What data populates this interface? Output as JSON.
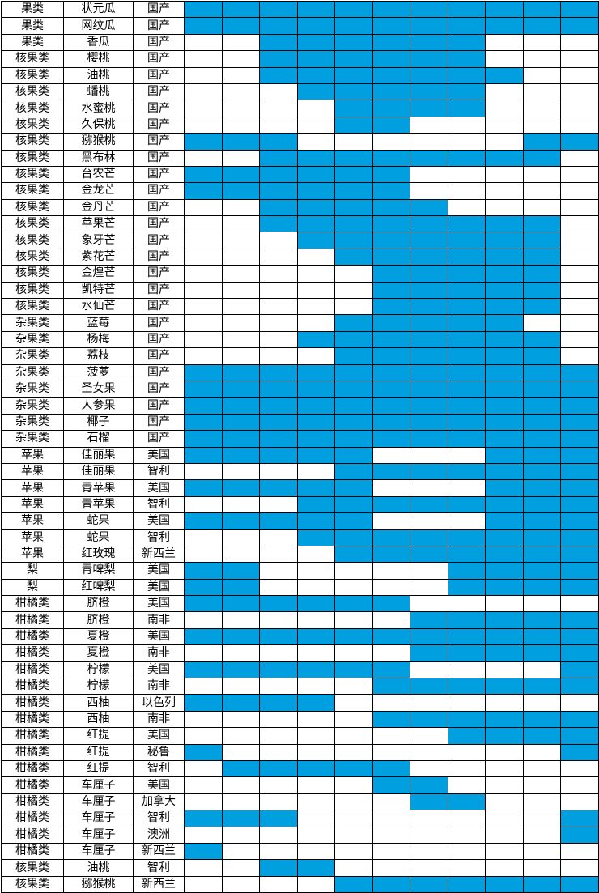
{
  "colors": {
    "filled": "#009fe0",
    "empty": "#ffffff",
    "grid": "#000000"
  },
  "month_columns": 11,
  "rows": [
    {
      "category": "果类",
      "name": "状元瓜",
      "origin": "国产",
      "months": [
        1,
        1,
        1,
        1,
        1,
        1,
        1,
        1,
        1,
        1,
        1
      ]
    },
    {
      "category": "果类",
      "name": "网纹瓜",
      "origin": "国产",
      "months": [
        1,
        1,
        1,
        1,
        1,
        1,
        1,
        1,
        1,
        1,
        1
      ]
    },
    {
      "category": "果类",
      "name": "香瓜",
      "origin": "国产",
      "months": [
        0,
        0,
        1,
        1,
        1,
        1,
        1,
        1,
        0,
        0,
        0
      ]
    },
    {
      "category": "核果类",
      "name": "樱桃",
      "origin": "国产",
      "months": [
        0,
        0,
        1,
        1,
        1,
        1,
        1,
        1,
        0,
        0,
        0
      ]
    },
    {
      "category": "核果类",
      "name": "油桃",
      "origin": "国产",
      "months": [
        0,
        0,
        1,
        1,
        1,
        1,
        1,
        1,
        1,
        0,
        0
      ]
    },
    {
      "category": "核果类",
      "name": "蟠桃",
      "origin": "国产",
      "months": [
        0,
        0,
        0,
        1,
        1,
        1,
        1,
        1,
        0,
        0,
        0
      ]
    },
    {
      "category": "核果类",
      "name": "水蜜桃",
      "origin": "国产",
      "months": [
        0,
        0,
        0,
        0,
        1,
        1,
        1,
        1,
        0,
        0,
        0
      ]
    },
    {
      "category": "核果类",
      "name": "久保桃",
      "origin": "国产",
      "months": [
        0,
        0,
        0,
        0,
        1,
        1,
        0,
        0,
        0,
        0,
        0
      ]
    },
    {
      "category": "核果类",
      "name": "猕猴桃",
      "origin": "国产",
      "months": [
        1,
        1,
        1,
        0,
        0,
        0,
        0,
        0,
        0,
        1,
        1
      ]
    },
    {
      "category": "核果类",
      "name": "黑布林",
      "origin": "国产",
      "months": [
        0,
        0,
        1,
        1,
        1,
        1,
        1,
        1,
        1,
        1,
        0
      ]
    },
    {
      "category": "核果类",
      "name": "台农芒",
      "origin": "国产",
      "months": [
        1,
        1,
        1,
        1,
        1,
        1,
        0,
        0,
        0,
        0,
        0
      ]
    },
    {
      "category": "核果类",
      "name": "金龙芒",
      "origin": "国产",
      "months": [
        1,
        1,
        1,
        1,
        1,
        1,
        0,
        0,
        0,
        0,
        0
      ]
    },
    {
      "category": "核果类",
      "name": "金丹芒",
      "origin": "国产",
      "months": [
        0,
        0,
        1,
        1,
        1,
        1,
        1,
        0,
        0,
        0,
        0
      ]
    },
    {
      "category": "核果类",
      "name": "苹果芒",
      "origin": "国产",
      "months": [
        0,
        0,
        1,
        1,
        1,
        1,
        1,
        1,
        1,
        1,
        0
      ]
    },
    {
      "category": "核果类",
      "name": "象牙芒",
      "origin": "国产",
      "months": [
        0,
        0,
        0,
        1,
        1,
        1,
        1,
        1,
        1,
        1,
        0
      ]
    },
    {
      "category": "核果类",
      "name": "紫花芒",
      "origin": "国产",
      "months": [
        0,
        0,
        0,
        0,
        1,
        1,
        1,
        1,
        1,
        1,
        0
      ]
    },
    {
      "category": "核果类",
      "name": "金煌芒",
      "origin": "国产",
      "months": [
        0,
        0,
        0,
        0,
        0,
        1,
        1,
        1,
        1,
        1,
        0
      ]
    },
    {
      "category": "核果类",
      "name": "凯特芒",
      "origin": "国产",
      "months": [
        0,
        0,
        0,
        0,
        0,
        1,
        1,
        1,
        1,
        1,
        0
      ]
    },
    {
      "category": "核果类",
      "name": "水仙芒",
      "origin": "国产",
      "months": [
        0,
        0,
        0,
        0,
        0,
        1,
        1,
        1,
        1,
        1,
        0
      ]
    },
    {
      "category": "杂果类",
      "name": "蓝莓",
      "origin": "国产",
      "months": [
        0,
        0,
        0,
        0,
        1,
        1,
        1,
        1,
        1,
        0,
        0
      ]
    },
    {
      "category": "杂果类",
      "name": "杨梅",
      "origin": "国产",
      "months": [
        0,
        0,
        0,
        1,
        1,
        1,
        1,
        1,
        1,
        1,
        0
      ]
    },
    {
      "category": "杂果类",
      "name": "荔枝",
      "origin": "国产",
      "months": [
        0,
        0,
        0,
        0,
        1,
        1,
        1,
        1,
        1,
        1,
        0
      ]
    },
    {
      "category": "杂果类",
      "name": "菠萝",
      "origin": "国产",
      "months": [
        1,
        1,
        1,
        1,
        1,
        1,
        1,
        1,
        1,
        1,
        1
      ]
    },
    {
      "category": "杂果类",
      "name": "圣女果",
      "origin": "国产",
      "months": [
        1,
        1,
        1,
        1,
        1,
        1,
        1,
        1,
        1,
        1,
        1
      ]
    },
    {
      "category": "杂果类",
      "name": "人参果",
      "origin": "国产",
      "months": [
        1,
        1,
        1,
        1,
        1,
        1,
        1,
        1,
        1,
        1,
        1
      ]
    },
    {
      "category": "杂果类",
      "name": "椰子",
      "origin": "国产",
      "months": [
        1,
        1,
        1,
        1,
        1,
        1,
        1,
        1,
        1,
        1,
        1
      ]
    },
    {
      "category": "杂果类",
      "name": "石榴",
      "origin": "国产",
      "months": [
        1,
        1,
        1,
        1,
        1,
        1,
        1,
        1,
        1,
        1,
        1
      ]
    },
    {
      "category": "苹果",
      "name": "佳丽果",
      "origin": "美国",
      "months": [
        1,
        1,
        1,
        1,
        1,
        0,
        0,
        0,
        1,
        1,
        1
      ]
    },
    {
      "category": "苹果",
      "name": "佳丽果",
      "origin": "智利",
      "months": [
        0,
        0,
        0,
        0,
        1,
        1,
        1,
        1,
        1,
        1,
        1
      ]
    },
    {
      "category": "苹果",
      "name": "青苹果",
      "origin": "美国",
      "months": [
        1,
        1,
        1,
        1,
        1,
        0,
        0,
        0,
        1,
        1,
        1
      ]
    },
    {
      "category": "苹果",
      "name": "青苹果",
      "origin": "智利",
      "months": [
        0,
        0,
        0,
        1,
        1,
        1,
        1,
        1,
        1,
        1,
        1
      ]
    },
    {
      "category": "苹果",
      "name": "蛇果",
      "origin": "美国",
      "months": [
        1,
        1,
        1,
        1,
        1,
        0,
        0,
        0,
        1,
        1,
        1
      ]
    },
    {
      "category": "苹果",
      "name": "蛇果",
      "origin": "智利",
      "months": [
        0,
        0,
        0,
        1,
        1,
        1,
        1,
        1,
        1,
        1,
        1
      ]
    },
    {
      "category": "苹果",
      "name": "红玫瑰",
      "origin": "新西兰",
      "months": [
        0,
        0,
        0,
        0,
        1,
        1,
        1,
        1,
        1,
        1,
        1
      ]
    },
    {
      "category": "梨",
      "name": "青啤梨",
      "origin": "美国",
      "months": [
        1,
        1,
        0,
        0,
        0,
        0,
        0,
        1,
        1,
        1,
        1
      ]
    },
    {
      "category": "梨",
      "name": "红啤梨",
      "origin": "美国",
      "months": [
        1,
        1,
        0,
        0,
        0,
        0,
        0,
        1,
        1,
        1,
        1
      ]
    },
    {
      "category": "柑橘类",
      "name": "脐橙",
      "origin": "美国",
      "months": [
        1,
        1,
        1,
        1,
        1,
        1,
        0,
        0,
        0,
        0,
        0
      ]
    },
    {
      "category": "柑橘类",
      "name": "脐橙",
      "origin": "南非",
      "months": [
        0,
        0,
        0,
        0,
        0,
        0,
        1,
        1,
        1,
        1,
        1
      ]
    },
    {
      "category": "柑橘类",
      "name": "夏橙",
      "origin": "美国",
      "months": [
        1,
        1,
        1,
        1,
        1,
        1,
        1,
        1,
        1,
        1,
        1
      ]
    },
    {
      "category": "柑橘类",
      "name": "夏橙",
      "origin": "南非",
      "months": [
        0,
        0,
        0,
        0,
        0,
        0,
        1,
        1,
        1,
        1,
        1
      ]
    },
    {
      "category": "柑橘类",
      "name": "柠檬",
      "origin": "美国",
      "months": [
        1,
        1,
        1,
        1,
        1,
        1,
        0,
        0,
        0,
        0,
        1
      ]
    },
    {
      "category": "柑橘类",
      "name": "柠檬",
      "origin": "南非",
      "months": [
        0,
        0,
        0,
        0,
        0,
        1,
        1,
        1,
        1,
        1,
        1
      ]
    },
    {
      "category": "柑橘类",
      "name": "西柚",
      "origin": "以色列",
      "months": [
        1,
        1,
        1,
        1,
        0,
        0,
        0,
        0,
        0,
        0,
        0
      ]
    },
    {
      "category": "柑橘类",
      "name": "西柚",
      "origin": "南非",
      "months": [
        0,
        0,
        0,
        0,
        0,
        1,
        1,
        1,
        1,
        1,
        1
      ]
    },
    {
      "category": "柑橘类",
      "name": "红提",
      "origin": "美国",
      "months": [
        0,
        0,
        0,
        0,
        0,
        0,
        0,
        1,
        1,
        1,
        1
      ]
    },
    {
      "category": "柑橘类",
      "name": "红提",
      "origin": "秘鲁",
      "months": [
        1,
        0,
        0,
        0,
        0,
        0,
        0,
        0,
        0,
        0,
        1
      ]
    },
    {
      "category": "柑橘类",
      "name": "红提",
      "origin": "智利",
      "months": [
        0,
        1,
        1,
        1,
        1,
        1,
        0,
        0,
        0,
        0,
        0
      ]
    },
    {
      "category": "柑橘类",
      "name": "车厘子",
      "origin": "美国",
      "months": [
        0,
        0,
        0,
        0,
        0,
        1,
        1,
        0,
        0,
        0,
        0
      ]
    },
    {
      "category": "柑橘类",
      "name": "车厘子",
      "origin": "加拿大",
      "months": [
        0,
        0,
        0,
        0,
        0,
        0,
        1,
        1,
        0,
        0,
        0
      ]
    },
    {
      "category": "柑橘类",
      "name": "车厘子",
      "origin": "智利",
      "months": [
        1,
        1,
        1,
        0,
        0,
        0,
        0,
        0,
        0,
        0,
        1
      ]
    },
    {
      "category": "柑橘类",
      "name": "车厘子",
      "origin": "澳洲",
      "months": [
        0,
        0,
        0,
        0,
        0,
        0,
        0,
        0,
        0,
        0,
        1
      ]
    },
    {
      "category": "柑橘类",
      "name": "车厘子",
      "origin": "新西兰",
      "months": [
        1,
        0,
        0,
        0,
        0,
        0,
        0,
        0,
        0,
        0,
        0
      ]
    },
    {
      "category": "核果类",
      "name": "油桃",
      "origin": "智利",
      "months": [
        0,
        0,
        1,
        1,
        0,
        0,
        0,
        0,
        0,
        0,
        0
      ]
    },
    {
      "category": "核果类",
      "name": "猕猴桃",
      "origin": "新西兰",
      "months": [
        0,
        0,
        0,
        0,
        1,
        1,
        1,
        1,
        1,
        1,
        1
      ]
    }
  ]
}
